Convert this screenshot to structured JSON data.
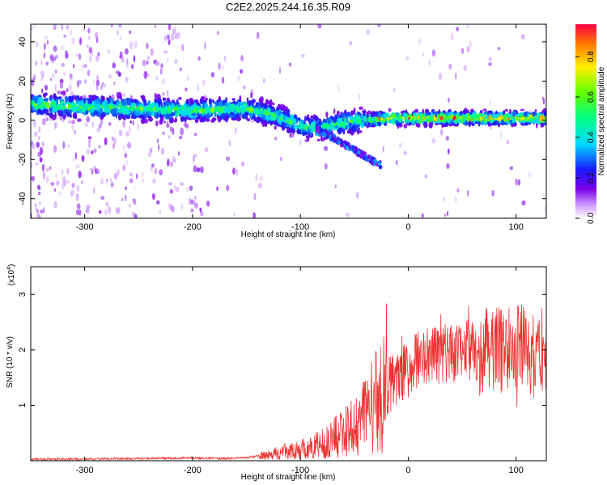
{
  "title": "C2E2.2025.244.16.35.R09",
  "chart_data": [
    {
      "type": "heatmap",
      "name": "spectrogram",
      "xlabel": "Height of straight line (km)",
      "ylabel": "Frequency (Hz)",
      "xlim": [
        -350,
        128
      ],
      "ylim": [
        -50,
        49
      ],
      "x_ticks": [
        -300,
        -200,
        -100,
        0,
        100
      ],
      "y_ticks": [
        -40,
        -20,
        0,
        20,
        40
      ],
      "grid": false,
      "ridge": {
        "x": [
          -350,
          -300,
          -250,
          -200,
          -150,
          -120,
          -100,
          -80,
          -60,
          -40,
          -20,
          0,
          50,
          100,
          128
        ],
        "freq": [
          8,
          7,
          6,
          5,
          6,
          2,
          -3,
          -4,
          -1,
          0,
          1,
          1,
          1,
          1,
          1
        ]
      },
      "colorbar": {
        "label": "Normalized spectral amplitude",
        "range": [
          0.0,
          0.96
        ],
        "ticks": [
          0.0,
          0.2,
          0.4,
          0.6,
          0.8
        ]
      }
    },
    {
      "type": "line",
      "name": "snr",
      "xlabel": "Height of straight line (km)",
      "ylabel": "SNR (10 * v/v)",
      "y_multiplier_label": "(x10",
      "y_multiplier_exp": "4",
      "y_multiplier_close": ")",
      "xlim": [
        -350,
        128
      ],
      "ylim": [
        0,
        3.5
      ],
      "x_ticks": [
        -300,
        -200,
        -100,
        0,
        100
      ],
      "y_ticks": [
        1,
        2,
        3
      ],
      "color": "#ee3333",
      "series": [
        {
          "name": "SNR",
          "x": [
            -350,
            -300,
            -250,
            -200,
            -170,
            -150,
            -130,
            -120,
            -100,
            -90,
            -80,
            -70,
            -60,
            -50,
            -40,
            -30,
            -20,
            -10,
            0,
            10,
            20,
            30,
            40,
            50,
            60,
            70,
            80,
            90,
            100,
            110,
            120,
            128
          ],
          "values": [
            0.03,
            0.03,
            0.04,
            0.05,
            0.04,
            0.06,
            0.1,
            0.15,
            0.22,
            0.25,
            0.3,
            0.4,
            0.5,
            0.6,
            0.8,
            1.05,
            1.3,
            1.55,
            1.65,
            1.8,
            1.85,
            1.9,
            1.95,
            2.0,
            2.0,
            1.95,
            2.0,
            2.0,
            2.05,
            2.0,
            1.95,
            2.0
          ]
        }
      ]
    }
  ]
}
